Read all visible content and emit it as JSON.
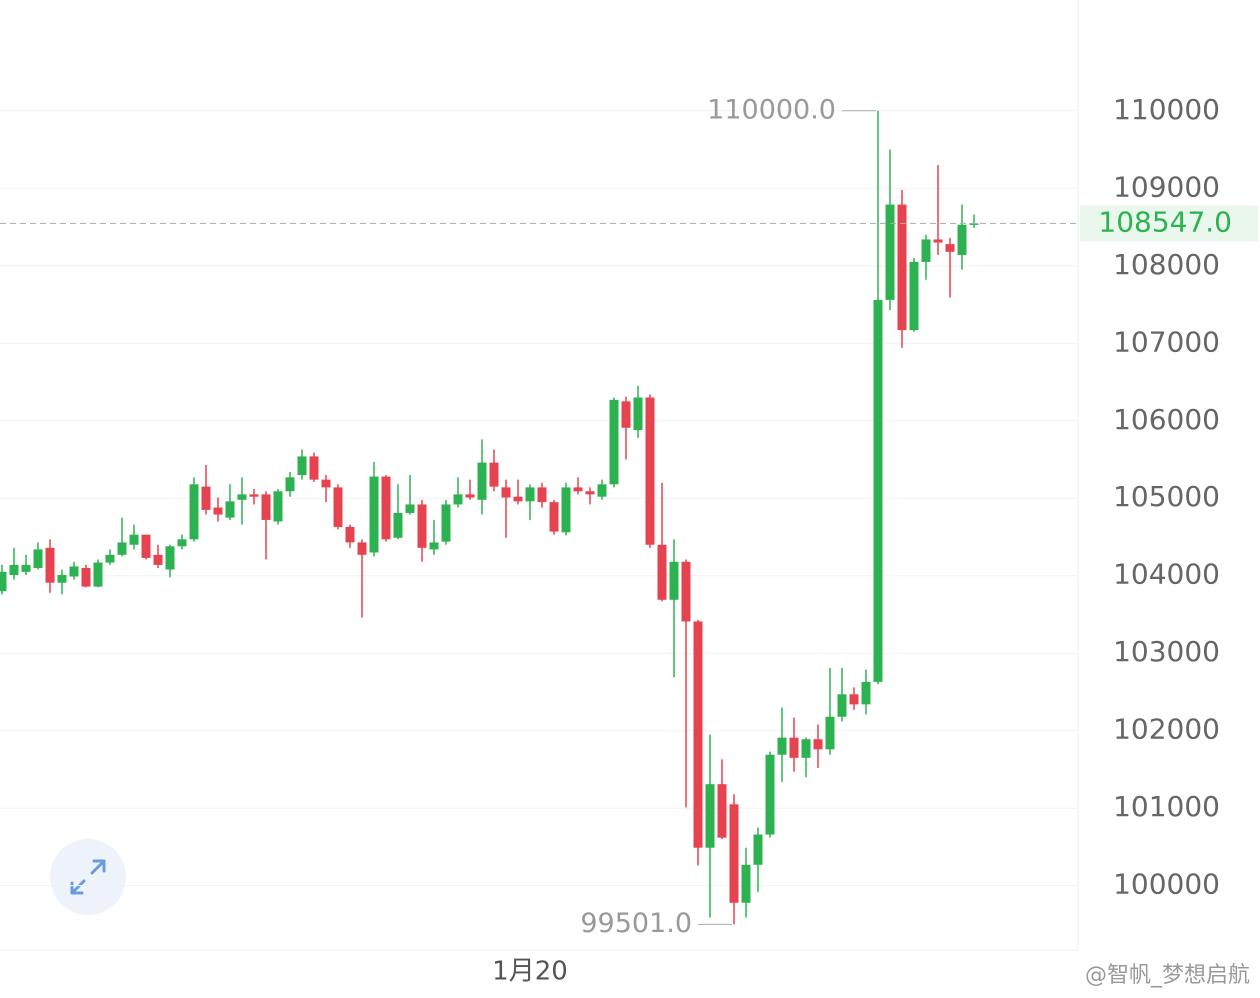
{
  "chart_data": {
    "type": "candlestick",
    "ylim": [
      99170,
      111430
    ],
    "yticks": [
      100000,
      101000,
      102000,
      103000,
      104000,
      105000,
      106000,
      107000,
      108000,
      109000,
      110000
    ],
    "grid": true,
    "up_color": "#2db252",
    "down_color": "#e5434f",
    "categories": [
      null,
      null,
      null,
      null,
      null,
      null,
      null,
      null,
      null,
      null,
      null,
      null,
      null,
      null,
      null,
      null,
      null,
      null,
      null,
      null,
      null,
      null,
      null,
      null,
      null,
      null,
      null,
      null,
      null,
      null,
      null,
      null,
      null,
      null,
      null,
      null,
      null,
      null,
      null,
      null,
      null,
      null,
      null,
      null,
      "1月20",
      null,
      null,
      null,
      null,
      null,
      null,
      null,
      null,
      null,
      null,
      null,
      null,
      null,
      null,
      null,
      null,
      null,
      null,
      null,
      null,
      null,
      null,
      null,
      null,
      null,
      null,
      null,
      null,
      null,
      null,
      null,
      null,
      null,
      null,
      null,
      null,
      null
    ],
    "candles": [
      [
        103800,
        104140,
        103760,
        104050
      ],
      [
        104010,
        104360,
        103950,
        104140
      ],
      [
        104050,
        104270,
        104010,
        104140
      ],
      [
        104100,
        104430,
        104080,
        104340
      ],
      [
        104360,
        104470,
        103780,
        103910
      ],
      [
        103910,
        104080,
        103760,
        104010
      ],
      [
        103990,
        104180,
        103950,
        104120
      ],
      [
        104100,
        104140,
        103850,
        103860
      ],
      [
        103860,
        104210,
        103850,
        104170
      ],
      [
        104170,
        104340,
        104140,
        104270
      ],
      [
        104270,
        104750,
        104250,
        104430
      ],
      [
        104400,
        104660,
        104340,
        104530
      ],
      [
        104530,
        104530,
        104210,
        104230
      ],
      [
        104270,
        104400,
        104100,
        104140
      ],
      [
        104080,
        104400,
        103980,
        104380
      ],
      [
        104380,
        104530,
        104340,
        104470
      ],
      [
        104470,
        105270,
        104440,
        105180
      ],
      [
        105150,
        105430,
        104790,
        104850
      ],
      [
        104880,
        105010,
        104700,
        104790
      ],
      [
        104750,
        105180,
        104720,
        104960
      ],
      [
        104980,
        105270,
        104660,
        105050
      ],
      [
        105050,
        105120,
        104920,
        105020
      ],
      [
        105050,
        105090,
        104210,
        104720
      ],
      [
        104700,
        105120,
        104660,
        105090
      ],
      [
        105090,
        105340,
        105020,
        105270
      ],
      [
        105300,
        105630,
        105240,
        105540
      ],
      [
        105540,
        105590,
        105210,
        105240
      ],
      [
        105240,
        105300,
        104950,
        105140
      ],
      [
        105140,
        105180,
        104600,
        104630
      ],
      [
        104630,
        104660,
        104360,
        104430
      ],
      [
        104430,
        104470,
        103460,
        104270
      ],
      [
        104300,
        105470,
        104250,
        105280
      ],
      [
        105280,
        105300,
        104440,
        104470
      ],
      [
        104490,
        105180,
        104470,
        104810
      ],
      [
        104810,
        105300,
        104790,
        104920
      ],
      [
        104920,
        104980,
        104180,
        104360
      ],
      [
        104340,
        104720,
        104270,
        104430
      ],
      [
        104440,
        104980,
        104400,
        104920
      ],
      [
        104920,
        105270,
        104880,
        105050
      ],
      [
        105050,
        105240,
        104980,
        105010
      ],
      [
        104980,
        105760,
        104790,
        105460
      ],
      [
        105460,
        105630,
        105090,
        105150
      ],
      [
        105140,
        105240,
        104490,
        105010
      ],
      [
        105020,
        105240,
        104920,
        104960
      ],
      [
        104960,
        105180,
        104720,
        105140
      ],
      [
        105140,
        105200,
        104880,
        104950
      ],
      [
        104950,
        104980,
        104530,
        104570
      ],
      [
        104560,
        105200,
        104520,
        105140
      ],
      [
        105140,
        105270,
        105050,
        105090
      ],
      [
        105090,
        105140,
        104920,
        105050
      ],
      [
        105020,
        105240,
        104980,
        105180
      ],
      [
        105180,
        106300,
        105140,
        106270
      ],
      [
        106250,
        106310,
        105500,
        105910
      ],
      [
        105880,
        106450,
        105780,
        106300
      ],
      [
        106300,
        106340,
        104360,
        104400
      ],
      [
        104400,
        105200,
        103670,
        103690
      ],
      [
        103690,
        104470,
        102690,
        104180
      ],
      [
        104180,
        104210,
        101010,
        103410
      ],
      [
        103410,
        103430,
        100260,
        100490
      ],
      [
        100490,
        101950,
        99590,
        101310
      ],
      [
        101310,
        101630,
        100600,
        100620
      ],
      [
        101050,
        101180,
        99501,
        99780
      ],
      [
        99780,
        100490,
        99590,
        100270
      ],
      [
        100270,
        100750,
        99920,
        100660
      ],
      [
        100660,
        101730,
        100620,
        101690
      ],
      [
        101690,
        102300,
        101340,
        101910
      ],
      [
        101910,
        102170,
        101470,
        101650
      ],
      [
        101650,
        101910,
        101400,
        101890
      ],
      [
        101890,
        102080,
        101520,
        101760
      ],
      [
        101760,
        102810,
        101690,
        102180
      ],
      [
        102180,
        102810,
        102120,
        102470
      ],
      [
        102470,
        102560,
        102270,
        102340
      ],
      [
        102340,
        102790,
        102210,
        102630
      ],
      [
        102630,
        110000,
        102600,
        107560
      ],
      [
        107560,
        109500,
        107430,
        108790
      ],
      [
        108790,
        108980,
        106940,
        107170
      ],
      [
        107170,
        108100,
        107150,
        108050
      ],
      [
        108050,
        108400,
        107820,
        108340
      ],
      [
        108340,
        109300,
        108140,
        108300
      ],
      [
        108280,
        108360,
        107590,
        108180
      ],
      [
        108140,
        108790,
        107950,
        108530
      ],
      [
        108530,
        108660,
        108490,
        108547
      ]
    ],
    "max_label": "110000.0",
    "min_label": "99501.0",
    "last_label": "108547.0"
  },
  "watermark": "@智帆_梦想启航"
}
